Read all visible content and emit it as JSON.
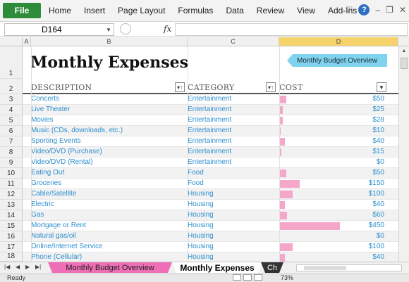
{
  "ribbon": {
    "file_label": "File",
    "menu": [
      "Home",
      "Insert",
      "Page Layout",
      "Formulas",
      "Data",
      "Review",
      "View",
      "Add-Ins"
    ],
    "help_label": "?"
  },
  "formula_bar": {
    "name_box": "D164",
    "fx_label": "fx",
    "formula_value": ""
  },
  "columns": [
    "A",
    "B",
    "C",
    "D"
  ],
  "row_numbers": [
    "1",
    "2",
    "3",
    "4",
    "5",
    "6",
    "7",
    "8",
    "9",
    "10",
    "11",
    "12",
    "13",
    "14",
    "15",
    "16",
    "17",
    "18"
  ],
  "sheet": {
    "title": "Monthly Expenses",
    "overview_button": "Monthly Budget Overview",
    "headers": {
      "description": "DESCRIPTION",
      "category": "CATEGORY",
      "cost": "COST"
    },
    "bar_max": 450,
    "rows": [
      {
        "description": "Concerts",
        "category": "Entertainment",
        "cost": "$50",
        "value": 50
      },
      {
        "description": "Live Theater",
        "category": "Entertainment",
        "cost": "$25",
        "value": 25
      },
      {
        "description": "Movies",
        "category": "Entertainment",
        "cost": "$28",
        "value": 28
      },
      {
        "description": "Music (CDs, downloads, etc.)",
        "category": "Entertainment",
        "cost": "$10",
        "value": 10
      },
      {
        "description": "Sporting Events",
        "category": "Entertainment",
        "cost": "$40",
        "value": 40
      },
      {
        "description": "Video/DVD (Purchase)",
        "category": "Entertainment",
        "cost": "$15",
        "value": 15
      },
      {
        "description": "Video/DVD (Rental)",
        "category": "Entertainment",
        "cost": "$0",
        "value": 0
      },
      {
        "description": "Eating Out",
        "category": "Food",
        "cost": "$50",
        "value": 50
      },
      {
        "description": "Groceries",
        "category": "Food",
        "cost": "$150",
        "value": 150
      },
      {
        "description": "Cable/Satellite",
        "category": "Housing",
        "cost": "$100",
        "value": 100
      },
      {
        "description": "Electric",
        "category": "Housing",
        "cost": "$40",
        "value": 40
      },
      {
        "description": "Gas",
        "category": "Housing",
        "cost": "$60",
        "value": 60
      },
      {
        "description": "Mortgage or Rent",
        "category": "Housing",
        "cost": "$450",
        "value": 450
      },
      {
        "description": "Natural gas/oil",
        "category": "Housing",
        "cost": "$0",
        "value": 0
      },
      {
        "description": "Online/Internet Service",
        "category": "Housing",
        "cost": "$100",
        "value": 100
      },
      {
        "description": "Phone (Cellular)",
        "category": "Housing",
        "cost": "$40",
        "value": 40
      }
    ]
  },
  "sheet_tabs": {
    "tab1": "Monthly Budget Overview",
    "tab2": "Monthly Expenses",
    "tab3": "Ch"
  },
  "status": {
    "text": "Ready",
    "zoom": "73%"
  },
  "colors": {
    "file_tab": "#2e8b3a",
    "link_text": "#2e8fcf",
    "bar": "#f4a7c8",
    "overview_button": "#7fd3ee",
    "pink_tab": "#ee6fb6",
    "selected_column": "#f5d36a"
  }
}
